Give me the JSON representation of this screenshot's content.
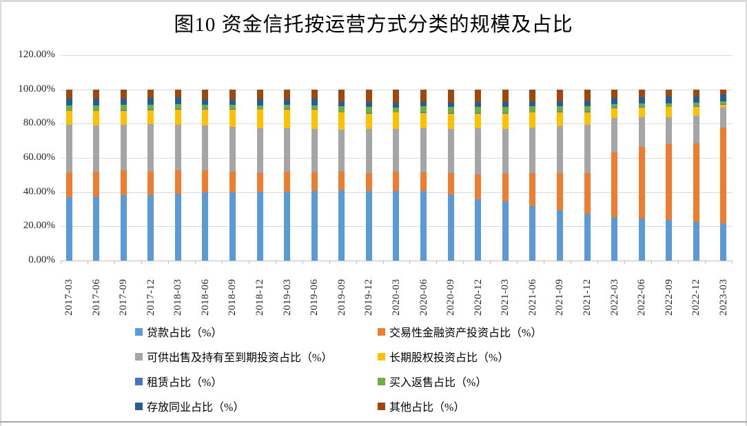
{
  "chart_data": {
    "type": "bar",
    "variant": "100%-stacked-column",
    "title": "图10 资金信托按运营方式分类的规模及占比",
    "xlabel": "",
    "ylabel": "",
    "ylim": [
      0,
      120
    ],
    "grid": true,
    "legend_position": "bottom",
    "y_ticks": [
      "120.00%",
      "100.00%",
      "80.00%",
      "60.00%",
      "40.00%",
      "20.00%",
      "0.00%"
    ],
    "categories": [
      "2017-03",
      "2017-06",
      "2017-09",
      "2017-12",
      "2018-03",
      "2018-06",
      "2018-09",
      "2018-12",
      "2019-03",
      "2019-06",
      "2019-09",
      "2019-12",
      "2020-03",
      "2020-06",
      "2020-09",
      "2020-12",
      "2021-03",
      "2021-06",
      "2021-09",
      "2021-12",
      "2022-03",
      "2022-06",
      "2022-09",
      "2022-12",
      "2023-03"
    ],
    "series": [
      {
        "name": "贷款占比（%）",
        "color": "#5B9BD5",
        "values": [
          37.0,
          37.6,
          38.4,
          38.2,
          39.0,
          39.7,
          40.1,
          40.3,
          40.3,
          40.6,
          41.1,
          40.6,
          40.9,
          40.6,
          38.7,
          35.8,
          34.7,
          31.7,
          29.6,
          27.4,
          25.3,
          24.5,
          23.9,
          22.8,
          21.8
        ]
      },
      {
        "name": "交易性金融资产投资占比（%）",
        "color": "#ED7D31",
        "values": [
          14.8,
          14.5,
          14.2,
          14.0,
          14.0,
          13.0,
          12.1,
          11.0,
          11.6,
          11.0,
          11.0,
          10.8,
          11.3,
          11.0,
          12.4,
          14.8,
          15.9,
          19.4,
          21.8,
          23.9,
          37.9,
          41.9,
          44.4,
          46.0,
          56.2
        ]
      },
      {
        "name": "可供出售及持有至到期投资占比（%）",
        "color": "#A5A5A5",
        "values": [
          27.6,
          26.7,
          26.6,
          27.7,
          26.3,
          26.3,
          26.1,
          25.9,
          25.5,
          25.5,
          24.7,
          25.5,
          25.0,
          25.8,
          26.1,
          26.9,
          26.6,
          26.9,
          27.2,
          28.0,
          20.4,
          17.5,
          15.6,
          15.9,
          11.8
        ]
      },
      {
        "name": "长期股权投资占比（%）",
        "color": "#FFC000",
        "values": [
          7.9,
          8.5,
          8.3,
          8.1,
          9.0,
          9.4,
          9.9,
          10.9,
          11.0,
          11.3,
          9.7,
          9.1,
          9.4,
          8.9,
          8.9,
          8.6,
          8.6,
          8.6,
          8.3,
          7.5,
          5.6,
          5.6,
          5.9,
          5.4,
          1.5
        ]
      },
      {
        "name": "租赁占比（%）",
        "color": "#4472C4",
        "values": [
          0.3,
          0.3,
          0.3,
          0.3,
          0.3,
          0.3,
          0.3,
          0.3,
          0.3,
          0.3,
          0.3,
          0.3,
          0.3,
          0.3,
          0.3,
          0.3,
          0.3,
          0.3,
          0.3,
          0.3,
          0.3,
          0.3,
          0.3,
          0.3,
          0.3
        ]
      },
      {
        "name": "买入返售占比（%）",
        "color": "#70AD47",
        "values": [
          3.3,
          3.2,
          3.0,
          2.9,
          2.9,
          2.5,
          2.5,
          2.2,
          2.2,
          2.2,
          3.6,
          3.6,
          2.8,
          3.6,
          3.6,
          3.8,
          3.8,
          3.3,
          3.3,
          3.3,
          2.0,
          2.2,
          2.0,
          2.0,
          1.7
        ]
      },
      {
        "name": "存放同业占比（%）",
        "color": "#255E91",
        "values": [
          4.0,
          4.0,
          3.9,
          4.2,
          4.0,
          3.2,
          3.2,
          3.5,
          3.5,
          3.8,
          2.4,
          2.7,
          2.7,
          2.4,
          2.4,
          2.7,
          2.7,
          3.0,
          2.7,
          3.0,
          3.8,
          3.5,
          3.8,
          3.8,
          4.0
        ]
      },
      {
        "name": "其他占比（%）",
        "color": "#9E480E",
        "values": [
          5.2,
          5.2,
          5.2,
          4.8,
          4.6,
          5.6,
          5.9,
          5.9,
          5.6,
          5.4,
          7.3,
          7.5,
          7.8,
          7.5,
          7.8,
          7.3,
          7.5,
          7.0,
          7.0,
          6.7,
          4.8,
          4.6,
          4.3,
          4.0,
          3.0
        ]
      }
    ],
    "colors": {
      "gridline": "#d9d9d9",
      "axis_line": "#bfbfbf",
      "frame_border": "#d9d9d9",
      "bottom_rule": "#a6a6a6",
      "axis_text": "#262626"
    }
  }
}
